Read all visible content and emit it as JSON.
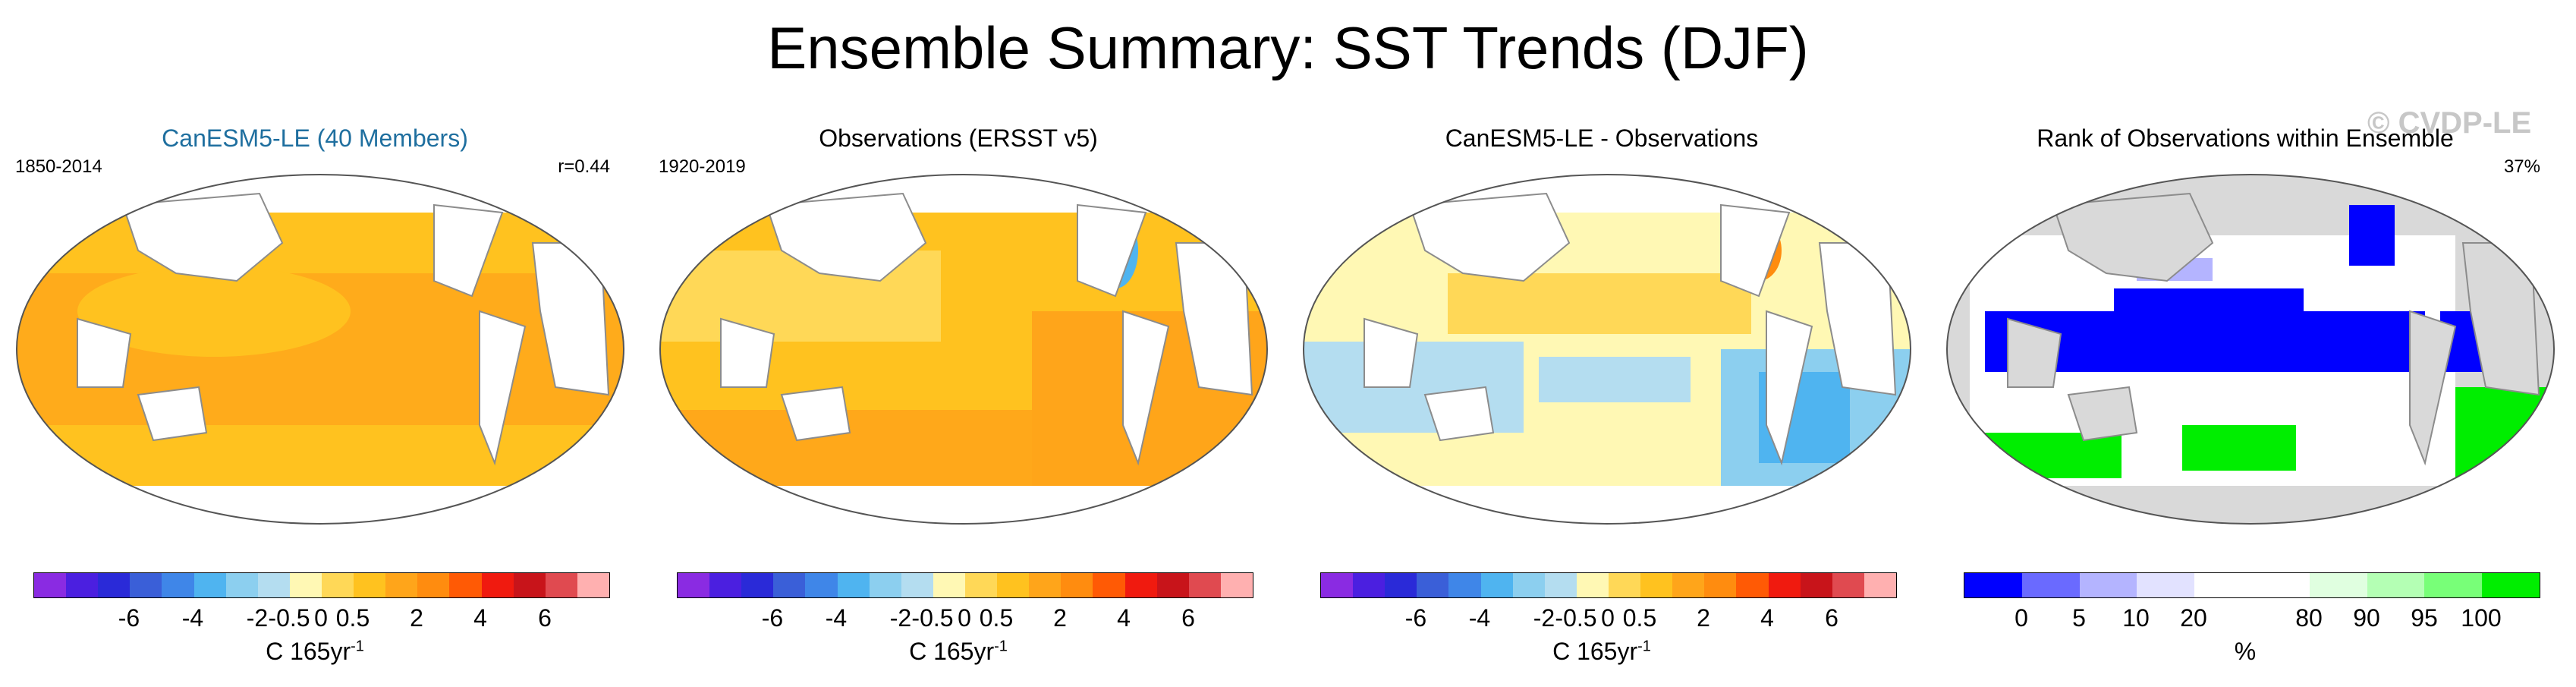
{
  "title": "Ensemble Summary: SST Trends (DJF)",
  "watermark": "© CVDP-LE",
  "panels": [
    {
      "title": "CanESM5-LE (40 Members)",
      "left": "1850-2014",
      "right": "r=0.44",
      "unit": "C 165yr",
      "sup": "-1"
    },
    {
      "title": "Observations (ERSST v5)",
      "left": "1920-2019",
      "right": "",
      "unit": "C 165yr",
      "sup": "-1"
    },
    {
      "title": "CanESM5-LE - Observations",
      "left": "",
      "right": "",
      "unit": "C 165yr",
      "sup": "-1"
    },
    {
      "title": "Rank of Observations within Ensemble",
      "left": "",
      "right": "37%",
      "unit": "%",
      "sup": ""
    }
  ],
  "temp_scale": {
    "colors": [
      "#8a2be2",
      "#4b1fe0",
      "#2a2ad8",
      "#3a5fd8",
      "#3f86e8",
      "#4fb4f0",
      "#8ccfef",
      "#b4ddf0",
      "#fff8b4",
      "#ffd857",
      "#ffc21f",
      "#ffa51a",
      "#ff8c0f",
      "#ff5a05",
      "#f01a0f",
      "#c8141a",
      "#e04a50",
      "#ffb0b0"
    ],
    "ticks": [
      "-6",
      "-4",
      "-2",
      "-0.5",
      "0",
      "0.5",
      "2",
      "4",
      "6"
    ]
  },
  "rank_scale": {
    "colors": [
      "#0000ff",
      "#6a6aff",
      "#b4b4ff",
      "#e2e2ff",
      "#ffffff",
      "#ffffff",
      "#e0ffe0",
      "#b4ffb4",
      "#78ff78",
      "#00ee00"
    ],
    "ticks": [
      "0",
      "5",
      "10",
      "20",
      "80",
      "90",
      "95",
      "100"
    ]
  },
  "colors": {
    "accent_title": "#1f6f9f",
    "land": "#ffffff",
    "coast": "#8c8c8c"
  }
}
